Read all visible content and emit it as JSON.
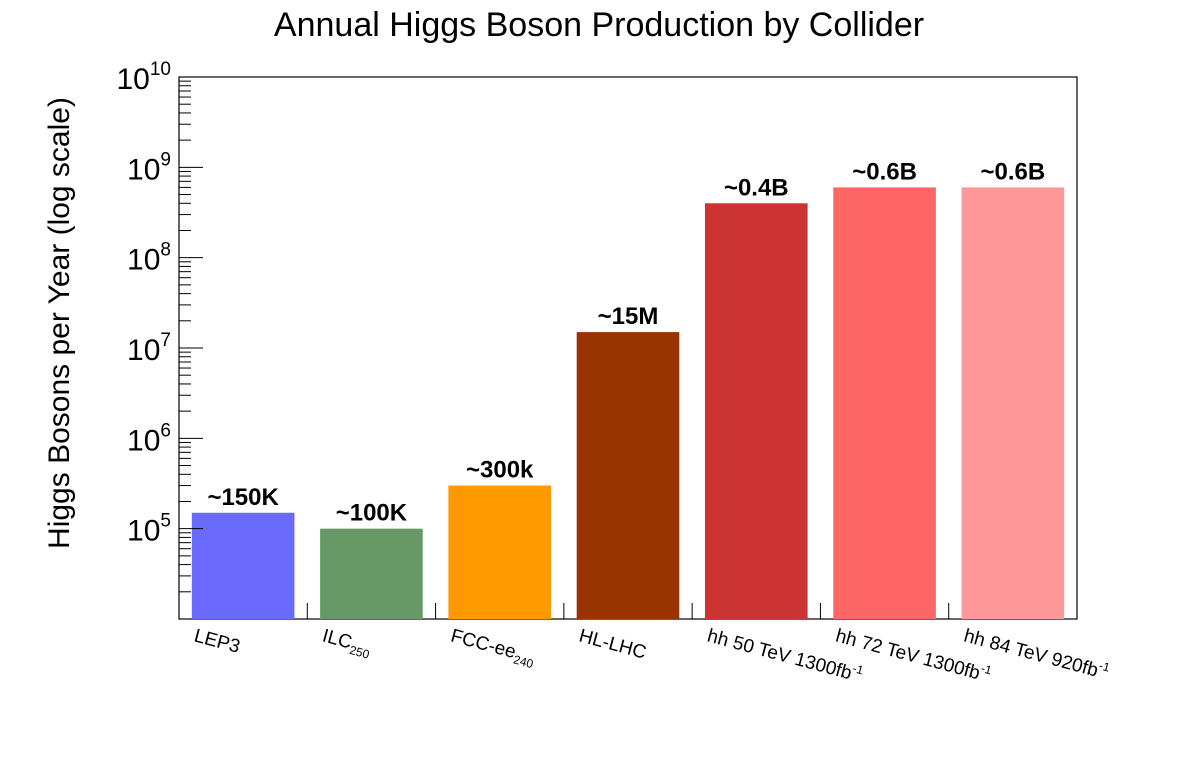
{
  "chart_data": {
    "type": "bar",
    "title": "Annual Higgs Boson Production by Collider",
    "xlabel": "",
    "ylabel": "Higgs Bosons per Year (log scale)",
    "yscale": "log",
    "ylim": [
      10000,
      10000000000
    ],
    "grid": false,
    "legend": "none",
    "categories": [
      {
        "text": "LEP3",
        "sub": "",
        "sup": ""
      },
      {
        "text": "ILC",
        "sub": "250",
        "sup": ""
      },
      {
        "text": "FCC-ee",
        "sub": "240",
        "sup": ""
      },
      {
        "text": "HL-LHC",
        "sub": "",
        "sup": ""
      },
      {
        "text": "hh 50 TeV 1300fb",
        "sub": "",
        "sup": "-1"
      },
      {
        "text": "hh 72 TeV 1300fb",
        "sub": "",
        "sup": "-1"
      },
      {
        "text": "hh 84 TeV 920fb",
        "sub": "",
        "sup": "-1"
      }
    ],
    "values": [
      150000,
      100000,
      300000,
      15000000,
      400000000,
      600000000,
      600000000
    ],
    "data_labels": [
      "~150K",
      "~100K",
      "~300k",
      "~15M",
      "~0.4B",
      "~0.6B",
      "~0.6B"
    ],
    "colors": [
      "#6a6aff",
      "#669966",
      "#ff9900",
      "#993300",
      "#cc3333",
      "#ff6666",
      "#ff9999"
    ],
    "y_tick_labels": [
      {
        "base": "10",
        "exp": "5",
        "value": 100000
      },
      {
        "base": "10",
        "exp": "6",
        "value": 1000000
      },
      {
        "base": "10",
        "exp": "7",
        "value": 10000000
      },
      {
        "base": "10",
        "exp": "8",
        "value": 100000000
      },
      {
        "base": "10",
        "exp": "9",
        "value": 1000000000
      },
      {
        "base": "10",
        "exp": "10",
        "value": 10000000000
      }
    ]
  }
}
